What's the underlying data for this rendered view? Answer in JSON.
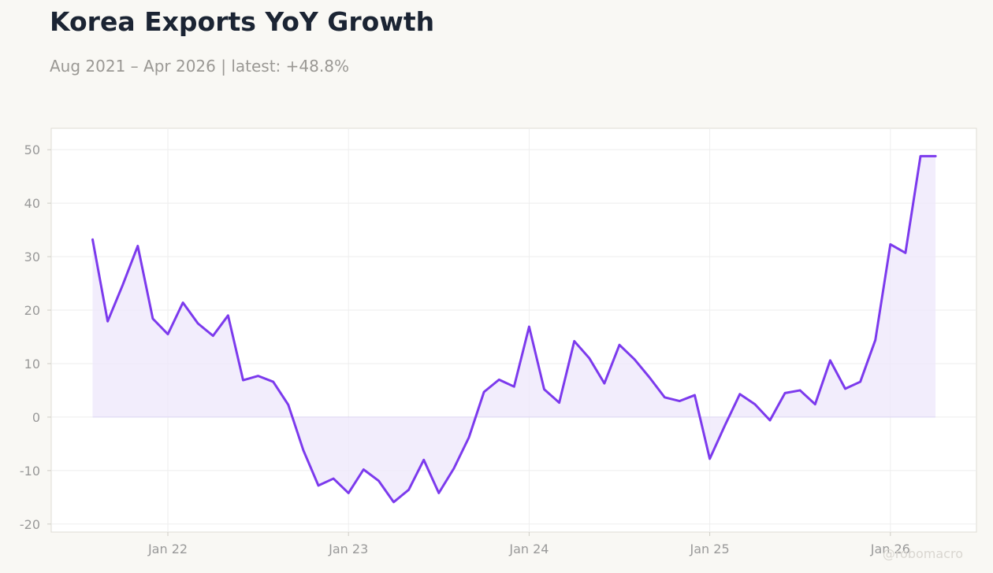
{
  "title": "Korea Exports YoY Growth",
  "subtitle": "Aug 2021 – Apr 2026 | latest: +48.8%",
  "watermark": "@robomacro",
  "colors": {
    "line": "#7c3aed",
    "fill": "#ede7fb",
    "plot_bg": "#ffffff",
    "page_bg": "#f9f8f4",
    "grid": "#eeeeee",
    "tick_text": "#999999"
  },
  "chart_data": {
    "type": "area",
    "title": "Korea Exports YoY Growth",
    "subtitle": "Aug 2021 – Apr 2026 | latest: +48.8%",
    "xlabel": "",
    "ylabel": "",
    "ylim": [
      -21.5,
      54
    ],
    "yticks": [
      -20,
      -10,
      0,
      10,
      20,
      30,
      40,
      50
    ],
    "xticks": [
      "Jan 22",
      "Jan 23",
      "Jan 24",
      "Jan 25",
      "Jan 26"
    ],
    "grid": true,
    "legend": "none",
    "x": [
      "2021-08",
      "2021-09",
      "2021-10",
      "2021-11",
      "2021-12",
      "2022-01",
      "2022-02",
      "2022-03",
      "2022-04",
      "2022-05",
      "2022-06",
      "2022-07",
      "2022-08",
      "2022-09",
      "2022-10",
      "2022-11",
      "2022-12",
      "2023-01",
      "2023-02",
      "2023-03",
      "2023-04",
      "2023-05",
      "2023-06",
      "2023-07",
      "2023-08",
      "2023-09",
      "2023-10",
      "2023-11",
      "2023-12",
      "2024-01",
      "2024-02",
      "2024-03",
      "2024-04",
      "2024-05",
      "2024-06",
      "2024-07",
      "2024-08",
      "2024-09",
      "2024-10",
      "2024-11",
      "2024-12",
      "2025-01",
      "2025-02",
      "2025-03",
      "2025-04",
      "2025-05",
      "2025-06",
      "2025-07",
      "2025-08",
      "2025-09",
      "2025-10",
      "2025-11",
      "2025-12",
      "2026-01",
      "2026-02",
      "2026-03",
      "2026-04"
    ],
    "series": [
      {
        "values": [
          33.2,
          17.9,
          24.7,
          32.0,
          18.4,
          15.5,
          21.4,
          17.5,
          15.2,
          19.0,
          6.9,
          7.7,
          6.6,
          2.3,
          -6.2,
          -12.8,
          -11.5,
          -14.2,
          -9.8,
          -11.9,
          -15.9,
          -13.6,
          -8.0,
          -14.2,
          -9.6,
          -3.8,
          4.7,
          7.0,
          5.7,
          16.9,
          5.2,
          2.7,
          14.2,
          11.0,
          6.3,
          13.5,
          10.8,
          7.4,
          3.7,
          3.0,
          4.1,
          -7.8,
          -1.6,
          4.3,
          2.4,
          -0.6,
          4.5,
          5.0,
          2.4,
          10.6,
          5.3,
          6.6,
          14.4,
          32.3,
          30.7,
          48.8,
          48.8
        ]
      }
    ]
  }
}
